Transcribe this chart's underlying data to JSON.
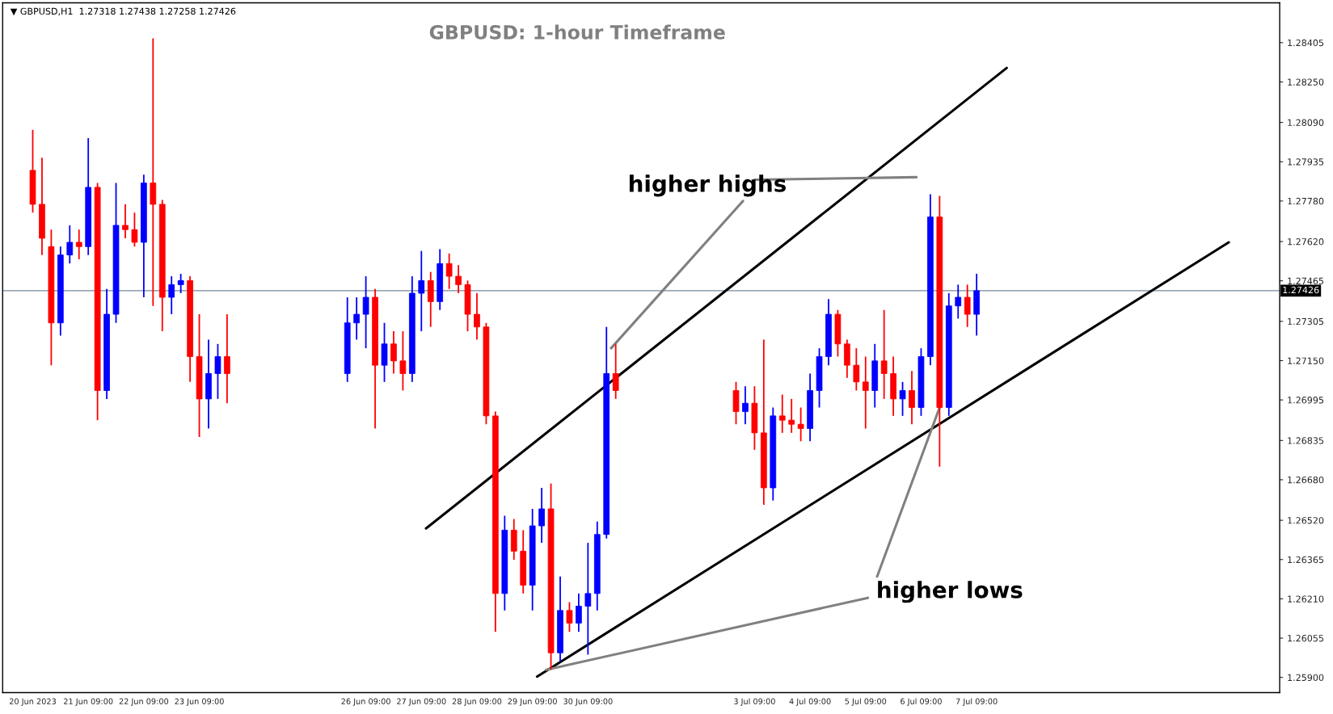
{
  "chart_data": {
    "type": "candlestick",
    "title": "GBPUSD: 1-hour Timeframe",
    "annotations": [
      "▼ GBPUSD,H1  1.27318 1.27438 1.27258 1.27426",
      "higher highs",
      "higher lows"
    ],
    "x": [
      "2023-06-20T09:00",
      "2023-06-20T13:00",
      "2023-06-20T17:00",
      "2023-06-20T21:00",
      "2023-06-21T01:00",
      "2023-06-21T05:00",
      "2023-06-21T09:00",
      "2023-06-21T13:00",
      "2023-06-21T17:00",
      "2023-06-21T21:00",
      "2023-06-22T01:00",
      "2023-06-22T05:00",
      "2023-06-22T09:00",
      "2023-06-22T13:00",
      "2023-06-22T17:00",
      "2023-06-22T21:00",
      "2023-06-23T01:00",
      "2023-06-23T05:00",
      "2023-06-23T09:00",
      "2023-06-23T13:00",
      "2023-06-23T17:00",
      "2023-06-23T21:00",
      "2023-06-26T01:00",
      "2023-06-26T05:00",
      "2023-06-26T09:00",
      "2023-06-26T13:00",
      "2023-06-26T17:00",
      "2023-06-26T21:00",
      "2023-06-27T01:00",
      "2023-06-27T05:00",
      "2023-06-27T09:00",
      "2023-06-27T13:00",
      "2023-06-27T17:00",
      "2023-06-27T21:00",
      "2023-06-28T01:00",
      "2023-06-28T05:00",
      "2023-06-28T09:00",
      "2023-06-28T13:00",
      "2023-06-28T17:00",
      "2023-06-28T21:00",
      "2023-06-29T01:00",
      "2023-06-29T05:00",
      "2023-06-29T09:00",
      "2023-06-29T13:00",
      "2023-06-29T17:00",
      "2023-06-29T21:00",
      "2023-06-30T01:00",
      "2023-06-30T05:00",
      "2023-06-30T09:00",
      "2023-06-30T13:00",
      "2023-06-30T17:00",
      "2023-06-30T21:00",
      "2023-07-03T01:00",
      "2023-07-03T05:00",
      "2023-07-03T09:00",
      "2023-07-03T13:00",
      "2023-07-03T17:00",
      "2023-07-03T21:00",
      "2023-07-04T01:00",
      "2023-07-04T05:00",
      "2023-07-04T09:00",
      "2023-07-04T13:00",
      "2023-07-04T17:00",
      "2023-07-04T21:00",
      "2023-07-05T01:00",
      "2023-07-05T05:00",
      "2023-07-05T09:00",
      "2023-07-05T13:00",
      "2023-07-05T17:00",
      "2023-07-05T21:00",
      "2023-07-06T01:00",
      "2023-07-06T05:00",
      "2023-07-06T09:00",
      "2023-07-06T13:00",
      "2023-07-06T17:00",
      "2023-07-06T21:00",
      "2023-07-07T01:00",
      "2023-07-07T05:00",
      "2023-07-07T09:00"
    ],
    "ohlc": [
      [
        1.27901,
        1.28061,
        1.27734,
        1.27767
      ],
      [
        1.27767,
        1.27951,
        1.27567,
        1.27633
      ],
      [
        1.276,
        1.27667,
        1.27132,
        1.27299
      ],
      [
        1.27299,
        1.276,
        1.27249,
        1.27567
      ],
      [
        1.27567,
        1.27684,
        1.27533,
        1.27617
      ],
      [
        1.27617,
        1.27667,
        1.2755,
        1.276
      ],
      [
        1.276,
        1.28028,
        1.27567,
        1.27834
      ],
      [
        1.27834,
        1.27851,
        1.26915,
        1.27032
      ],
      [
        1.27032,
        1.27433,
        1.26999,
        1.27333
      ],
      [
        1.27333,
        1.27851,
        1.27299,
        1.27684
      ],
      [
        1.27684,
        1.27767,
        1.27633,
        1.27667
      ],
      [
        1.27667,
        1.27734,
        1.276,
        1.27617
      ],
      [
        1.27617,
        1.27884,
        1.274,
        1.27851
      ],
      [
        1.27851,
        1.28422,
        1.27366,
        1.27767
      ],
      [
        1.27767,
        1.27784,
        1.27266,
        1.274
      ],
      [
        1.274,
        1.27483,
        1.27333,
        1.2745
      ],
      [
        1.2745,
        1.27493,
        1.27416,
        1.27466
      ],
      [
        1.27466,
        1.27483,
        1.27066,
        1.27166
      ],
      [
        1.27166,
        1.27333,
        1.26849,
        1.26999
      ],
      [
        1.26999,
        1.27233,
        1.26882,
        1.27099
      ],
      [
        1.27099,
        1.27216,
        1.26999,
        1.27166
      ],
      [
        1.27166,
        1.27333,
        1.26982,
        1.27099
      ],
      [
        1.27099,
        1.274,
        1.27066,
        1.27299
      ],
      [
        1.27299,
        1.274,
        1.27233,
        1.27333
      ],
      [
        1.27333,
        1.27483,
        1.27199,
        1.274
      ],
      [
        1.274,
        1.27433,
        1.26882,
        1.27132
      ],
      [
        1.27132,
        1.27299,
        1.27066,
        1.27216
      ],
      [
        1.27216,
        1.27266,
        1.27099,
        1.27149
      ],
      [
        1.27149,
        1.27266,
        1.27032,
        1.27099
      ],
      [
        1.27099,
        1.27483,
        1.27066,
        1.27416
      ],
      [
        1.27416,
        1.27583,
        1.27266,
        1.27466
      ],
      [
        1.27466,
        1.275,
        1.27283,
        1.27383
      ],
      [
        1.27383,
        1.2759,
        1.2735,
        1.27533
      ],
      [
        1.27533,
        1.27573,
        1.27433,
        1.27483
      ],
      [
        1.27483,
        1.27527,
        1.27416,
        1.2745
      ],
      [
        1.2745,
        1.27466,
        1.27266,
        1.27333
      ],
      [
        1.27333,
        1.27416,
        1.27233,
        1.27283
      ],
      [
        1.27283,
        1.27299,
        1.26899,
        1.26932
      ],
      [
        1.26932,
        1.26949,
        1.2608,
        1.26231
      ],
      [
        1.26231,
        1.26538,
        1.26164,
        1.26481
      ],
      [
        1.26481,
        1.26525,
        1.26364,
        1.26398
      ],
      [
        1.26398,
        1.26481,
        1.26231,
        1.26264
      ],
      [
        1.26264,
        1.26565,
        1.26164,
        1.26498
      ],
      [
        1.26498,
        1.26648,
        1.26431,
        1.26565
      ],
      [
        1.26565,
        1.26665,
        1.2593,
        1.25997
      ],
      [
        1.25997,
        1.26298,
        1.25963,
        1.26164
      ],
      [
        1.26164,
        1.26197,
        1.2608,
        1.26114
      ],
      [
        1.26114,
        1.26231,
        1.2608,
        1.26181
      ],
      [
        1.26181,
        1.26431,
        1.2599,
        1.26231
      ],
      [
        1.26231,
        1.26515,
        1.26164,
        1.26464
      ],
      [
        1.26464,
        1.27283,
        1.26448,
        1.27099
      ],
      [
        1.27099,
        1.27216,
        1.26999,
        1.27032
      ],
      [
        1.27032,
        1.27066,
        1.26899,
        1.26949
      ],
      [
        1.26949,
        1.27049,
        1.26899,
        1.26982
      ],
      [
        1.26982,
        1.27049,
        1.26798,
        1.26865
      ],
      [
        1.26865,
        1.27233,
        1.26581,
        1.26648
      ],
      [
        1.26648,
        1.26965,
        1.26598,
        1.26932
      ],
      [
        1.26932,
        1.27016,
        1.26865,
        1.26915
      ],
      [
        1.26915,
        1.26999,
        1.26865,
        1.26899
      ],
      [
        1.26899,
        1.26965,
        1.26832,
        1.26882
      ],
      [
        1.26882,
        1.27099,
        1.26832,
        1.27032
      ],
      [
        1.27032,
        1.27199,
        1.26965,
        1.27166
      ],
      [
        1.27166,
        1.27393,
        1.27132,
        1.27333
      ],
      [
        1.27333,
        1.2735,
        1.27166,
        1.27216
      ],
      [
        1.27216,
        1.27233,
        1.27082,
        1.27132
      ],
      [
        1.27132,
        1.27199,
        1.27032,
        1.27066
      ],
      [
        1.27066,
        1.27166,
        1.26882,
        1.27032
      ],
      [
        1.27032,
        1.27216,
        1.26965,
        1.27149
      ],
      [
        1.27149,
        1.2735,
        1.26999,
        1.27099
      ],
      [
        1.27099,
        1.27166,
        1.26932,
        1.26999
      ],
      [
        1.26999,
        1.27066,
        1.26932,
        1.27032
      ],
      [
        1.27032,
        1.27109,
        1.26899,
        1.26965
      ],
      [
        1.26965,
        1.27199,
        1.26932,
        1.27166
      ],
      [
        1.27166,
        1.27807,
        1.27132,
        1.27717
      ],
      [
        1.27717,
        1.278,
        1.26732,
        1.26965
      ],
      [
        1.26965,
        1.27416,
        1.26932,
        1.27366
      ],
      [
        1.27366,
        1.2745,
        1.27316,
        1.274
      ],
      [
        1.274,
        1.2745,
        1.27283,
        1.27333
      ],
      [
        1.27333,
        1.27493,
        1.27249,
        1.27426
      ]
    ],
    "colors": [
      "#ff0000",
      "#ff0000",
      "#ff0000",
      "#0000ff",
      "#0000ff",
      "#ff0000",
      "#0000ff",
      "#ff0000",
      "#0000ff",
      "#0000ff",
      "#ff0000",
      "#ff0000",
      "#0000ff",
      "#ff0000",
      "#ff0000",
      "#0000ff",
      "#0000ff",
      "#ff0000",
      "#ff0000",
      "#0000ff",
      "#0000ff",
      "#ff0000",
      "#0000ff",
      "#0000ff",
      "#0000ff",
      "#ff0000",
      "#0000ff",
      "#ff0000",
      "#ff0000",
      "#0000ff",
      "#0000ff",
      "#ff0000",
      "#0000ff",
      "#ff0000",
      "#ff0000",
      "#ff0000",
      "#ff0000",
      "#ff0000",
      "#ff0000",
      "#0000ff",
      "#ff0000",
      "#ff0000",
      "#0000ff",
      "#0000ff",
      "#ff0000",
      "#0000ff",
      "#ff0000",
      "#0000ff",
      "#0000ff",
      "#0000ff",
      "#0000ff",
      "#ff0000",
      "#ff0000",
      "#0000ff",
      "#ff0000",
      "#ff0000",
      "#0000ff",
      "#ff0000",
      "#ff0000",
      "#ff0000",
      "#0000ff",
      "#0000ff",
      "#0000ff",
      "#ff0000",
      "#ff0000",
      "#ff0000",
      "#ff0000",
      "#0000ff",
      "#ff0000",
      "#ff0000",
      "#0000ff",
      "#ff0000",
      "#0000ff",
      "#0000ff",
      "#ff0000",
      "#0000ff",
      "#0000ff",
      "#ff0000",
      "#0000ff"
    ],
    "series": [
      {
        "type": "line",
        "color": "#000000",
        "x": [
          "2023-06-27T11:00",
          "2023-07-07T22:00"
        ],
        "values": [
          1.26488,
          1.28305
        ]
      },
      {
        "type": "line",
        "color": "#000000",
        "x": [
          "2023-06-29T11:00",
          "2023-07-11T22:00"
        ],
        "values": [
          1.25903,
          1.27617
        ]
      },
      {
        "type": "line",
        "color": "#808080",
        "x": [
          "2023-07-03T09:00",
          "2023-07-06T07:00"
        ],
        "values": [
          1.27864,
          1.27874
        ]
      },
      {
        "type": "line",
        "color": "#808080",
        "x": [
          "2023-07-03T04:00",
          "2023-06-30T19:00"
        ],
        "values": [
          1.2778,
          1.27199
        ]
      },
      {
        "type": "line",
        "color": "#808080",
        "x": [
          "2023-07-05T10:00",
          "2023-06-29T15:00"
        ],
        "values": [
          1.26214,
          1.2593
        ]
      },
      {
        "type": "line",
        "color": "#808080",
        "x": [
          "2023-07-05T14:00",
          "2023-07-06T17:00"
        ],
        "values": [
          1.26298,
          1.26965
        ]
      }
    ],
    "ref_lines": [
      {
        "axis": "y",
        "value": 1.27426,
        "label": "1.27426",
        "color": "#778899"
      }
    ],
    "xlim": [
      "2023-06-19T20:00",
      "2023-07-12T20:00"
    ],
    "xticks": [
      {
        "value": "2023-06-20T09:00",
        "label": "20 Jun 2023"
      },
      {
        "value": "2023-06-21T09:00",
        "label": "21 Jun 09:00"
      },
      {
        "value": "2023-06-22T09:00",
        "label": "22 Jun 09:00"
      },
      {
        "value": "2023-06-23T09:00",
        "label": "23 Jun 09:00"
      },
      {
        "value": "2023-06-26T09:00",
        "label": "26 Jun 09:00"
      },
      {
        "value": "2023-06-27T09:00",
        "label": "27 Jun 09:00"
      },
      {
        "value": "2023-06-28T09:00",
        "label": "28 Jun 09:00"
      },
      {
        "value": "2023-06-29T09:00",
        "label": "29 Jun 09:00"
      },
      {
        "value": "2023-06-30T09:00",
        "label": "30 Jun 09:00"
      },
      {
        "value": "2023-07-03T09:00",
        "label": "3 Jul 09:00"
      },
      {
        "value": "2023-07-04T09:00",
        "label": "4 Jul 09:00"
      },
      {
        "value": "2023-07-05T09:00",
        "label": "5 Jul 09:00"
      },
      {
        "value": "2023-07-06T09:00",
        "label": "6 Jul 09:00"
      },
      {
        "value": "2023-07-07T09:00",
        "label": "7 Jul 09:00"
      }
    ],
    "ylim": [
      1.2584,
      1.28562
    ],
    "yticks": [
      {
        "value": 1.28405,
        "label": "1.28405"
      },
      {
        "value": 1.2825,
        "label": "1.28250"
      },
      {
        "value": 1.2809,
        "label": "1.28090"
      },
      {
        "value": 1.27935,
        "label": "1.27935"
      },
      {
        "value": 1.2778,
        "label": "1.27780"
      },
      {
        "value": 1.2762,
        "label": "1.27620"
      },
      {
        "value": 1.27465,
        "label": "1.27465"
      },
      {
        "value": 1.27305,
        "label": "1.27305"
      },
      {
        "value": 1.2715,
        "label": "1.27150"
      },
      {
        "value": 1.26995,
        "label": "1.26995"
      },
      {
        "value": 1.26835,
        "label": "1.26835"
      },
      {
        "value": 1.2668,
        "label": "1.26680"
      },
      {
        "value": 1.2652,
        "label": "1.26520"
      },
      {
        "value": 1.26365,
        "label": "1.26365"
      },
      {
        "value": 1.2621,
        "label": "1.26210"
      },
      {
        "value": 1.26055,
        "label": "1.26055"
      },
      {
        "value": 1.259,
        "label": "1.25900"
      }
    ]
  }
}
